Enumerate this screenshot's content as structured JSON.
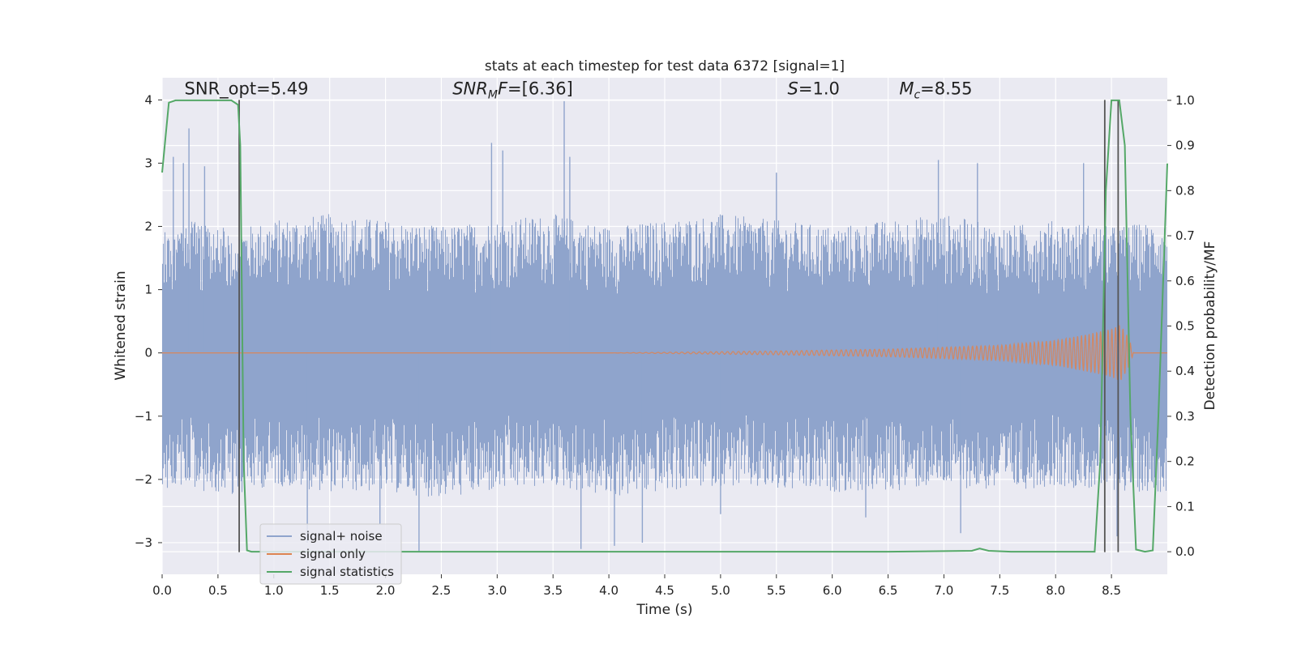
{
  "chart_data": {
    "type": "line",
    "title": "stats at each timestep for test data 6372 [signal=1]",
    "xlabel": "Time (s)",
    "ylabel": "Whitened strain",
    "y2label": "Detection probability/MF",
    "xlim": [
      0,
      9
    ],
    "ylim": [
      -3.5,
      4.35
    ],
    "y2lim": [
      -0.05,
      1.05
    ],
    "xticks": [
      0.0,
      0.5,
      1.0,
      1.5,
      2.0,
      2.5,
      3.0,
      3.5,
      4.0,
      4.5,
      5.0,
      5.5,
      6.0,
      6.5,
      7.0,
      7.5,
      8.0,
      8.5
    ],
    "xtick_labels": [
      "0.0",
      "0.5",
      "1.0",
      "1.5",
      "2.0",
      "2.5",
      "3.0",
      "3.5",
      "4.0",
      "4.5",
      "5.0",
      "5.5",
      "6.0",
      "6.5",
      "7.0",
      "7.5",
      "8.0",
      "8.5"
    ],
    "yticks": [
      -3,
      -2,
      -1,
      0,
      1,
      2,
      3,
      4
    ],
    "ytick_labels": [
      "−3",
      "−2",
      "−1",
      "0",
      "1",
      "2",
      "3",
      "4"
    ],
    "y2ticks": [
      0.0,
      0.1,
      0.2,
      0.3,
      0.4,
      0.5,
      0.6,
      0.7,
      0.8,
      0.9,
      1.0
    ],
    "y2tick_labels": [
      "0.0",
      "0.1",
      "0.2",
      "0.3",
      "0.4",
      "0.5",
      "0.6",
      "0.7",
      "0.8",
      "0.9",
      "1.0"
    ],
    "grid": true,
    "legend_position": "lower-left",
    "annotations": [
      {
        "text": "SNR_opt=5.49",
        "x": 0.2,
        "y": 4.1
      },
      {
        "text": "SNR_MF=[6.36]",
        "x": 2.6,
        "y": 4.1
      },
      {
        "text": "S=1.0",
        "x": 5.6,
        "y": 4.1
      },
      {
        "text": "M_c=8.55",
        "x": 6.6,
        "y": 4.1
      }
    ],
    "series": [
      {
        "name": "signal+ noise",
        "axis": "left",
        "color": "#8fa4cc",
        "envelope": [
          [
            0.0,
            1.9,
            -2.2
          ],
          [
            0.25,
            2.1,
            -2.1
          ],
          [
            0.5,
            2.0,
            -2.3
          ],
          [
            0.75,
            2.0,
            -2.2
          ],
          [
            1.0,
            2.1,
            -2.1
          ],
          [
            1.5,
            2.2,
            -2.2
          ],
          [
            2.0,
            2.1,
            -2.2
          ],
          [
            2.5,
            2.0,
            -2.3
          ],
          [
            3.0,
            2.1,
            -2.2
          ],
          [
            3.5,
            2.2,
            -2.1
          ],
          [
            4.0,
            2.0,
            -2.3
          ],
          [
            4.5,
            2.1,
            -2.2
          ],
          [
            5.0,
            2.2,
            -2.1
          ],
          [
            5.5,
            2.1,
            -2.2
          ],
          [
            6.0,
            2.0,
            -2.2
          ],
          [
            6.5,
            2.1,
            -2.2
          ],
          [
            7.0,
            2.2,
            -2.1
          ],
          [
            7.5,
            2.0,
            -2.2
          ],
          [
            8.0,
            2.1,
            -2.1
          ],
          [
            8.5,
            2.0,
            -2.2
          ],
          [
            9.0,
            2.1,
            -2.2
          ]
        ],
        "peaks": [
          [
            0.24,
            3.55
          ],
          [
            0.1,
            3.1
          ],
          [
            0.19,
            3.0
          ],
          [
            0.38,
            2.95
          ],
          [
            2.95,
            3.32
          ],
          [
            3.05,
            3.2
          ],
          [
            3.6,
            3.98
          ],
          [
            3.65,
            3.1
          ],
          [
            6.95,
            3.05
          ],
          [
            7.3,
            3.0
          ],
          [
            8.25,
            3.0
          ],
          [
            5.5,
            2.85
          ],
          [
            1.3,
            -3.0
          ],
          [
            2.3,
            -3.15
          ],
          [
            3.75,
            -3.1
          ],
          [
            4.05,
            -3.05
          ],
          [
            4.3,
            -3.0
          ],
          [
            7.15,
            -2.85
          ],
          [
            8.55,
            -2.9
          ],
          [
            1.95,
            -2.7
          ],
          [
            5.0,
            -2.55
          ],
          [
            6.3,
            -2.6
          ]
        ]
      },
      {
        "name": "signal only",
        "axis": "left",
        "color": "#dd8452",
        "amplitude": [
          [
            0.0,
            0.0
          ],
          [
            4.0,
            0.0
          ],
          [
            4.5,
            0.01
          ],
          [
            5.5,
            0.03
          ],
          [
            6.5,
            0.06
          ],
          [
            7.5,
            0.12
          ],
          [
            8.0,
            0.2
          ],
          [
            8.3,
            0.3
          ],
          [
            8.5,
            0.38
          ],
          [
            8.58,
            0.45
          ],
          [
            8.65,
            0.25
          ],
          [
            8.7,
            0.0
          ],
          [
            9.0,
            0.0
          ]
        ]
      },
      {
        "name": "signal statistics",
        "axis": "right",
        "color": "#55a868",
        "points": [
          [
            0.0,
            0.84
          ],
          [
            0.06,
            0.995
          ],
          [
            0.12,
            1.0
          ],
          [
            0.55,
            1.0
          ],
          [
            0.62,
            1.0
          ],
          [
            0.68,
            0.99
          ],
          [
            0.7,
            0.9
          ],
          [
            0.73,
            0.2
          ],
          [
            0.76,
            0.003
          ],
          [
            0.8,
            0.0
          ],
          [
            1.5,
            0.0
          ],
          [
            3.0,
            0.0
          ],
          [
            5.0,
            0.0
          ],
          [
            6.5,
            0.0
          ],
          [
            7.25,
            0.002
          ],
          [
            7.32,
            0.007
          ],
          [
            7.4,
            0.002
          ],
          [
            7.6,
            0.0
          ],
          [
            8.35,
            0.0
          ],
          [
            8.4,
            0.2
          ],
          [
            8.45,
            0.8
          ],
          [
            8.5,
            1.0
          ],
          [
            8.57,
            1.0
          ],
          [
            8.62,
            0.9
          ],
          [
            8.67,
            0.3
          ],
          [
            8.72,
            0.005
          ],
          [
            8.8,
            0.0
          ],
          [
            8.87,
            0.003
          ],
          [
            8.92,
            0.3
          ],
          [
            9.0,
            0.86
          ]
        ]
      }
    ],
    "vlines": [
      0.69,
      8.44,
      8.56
    ]
  }
}
